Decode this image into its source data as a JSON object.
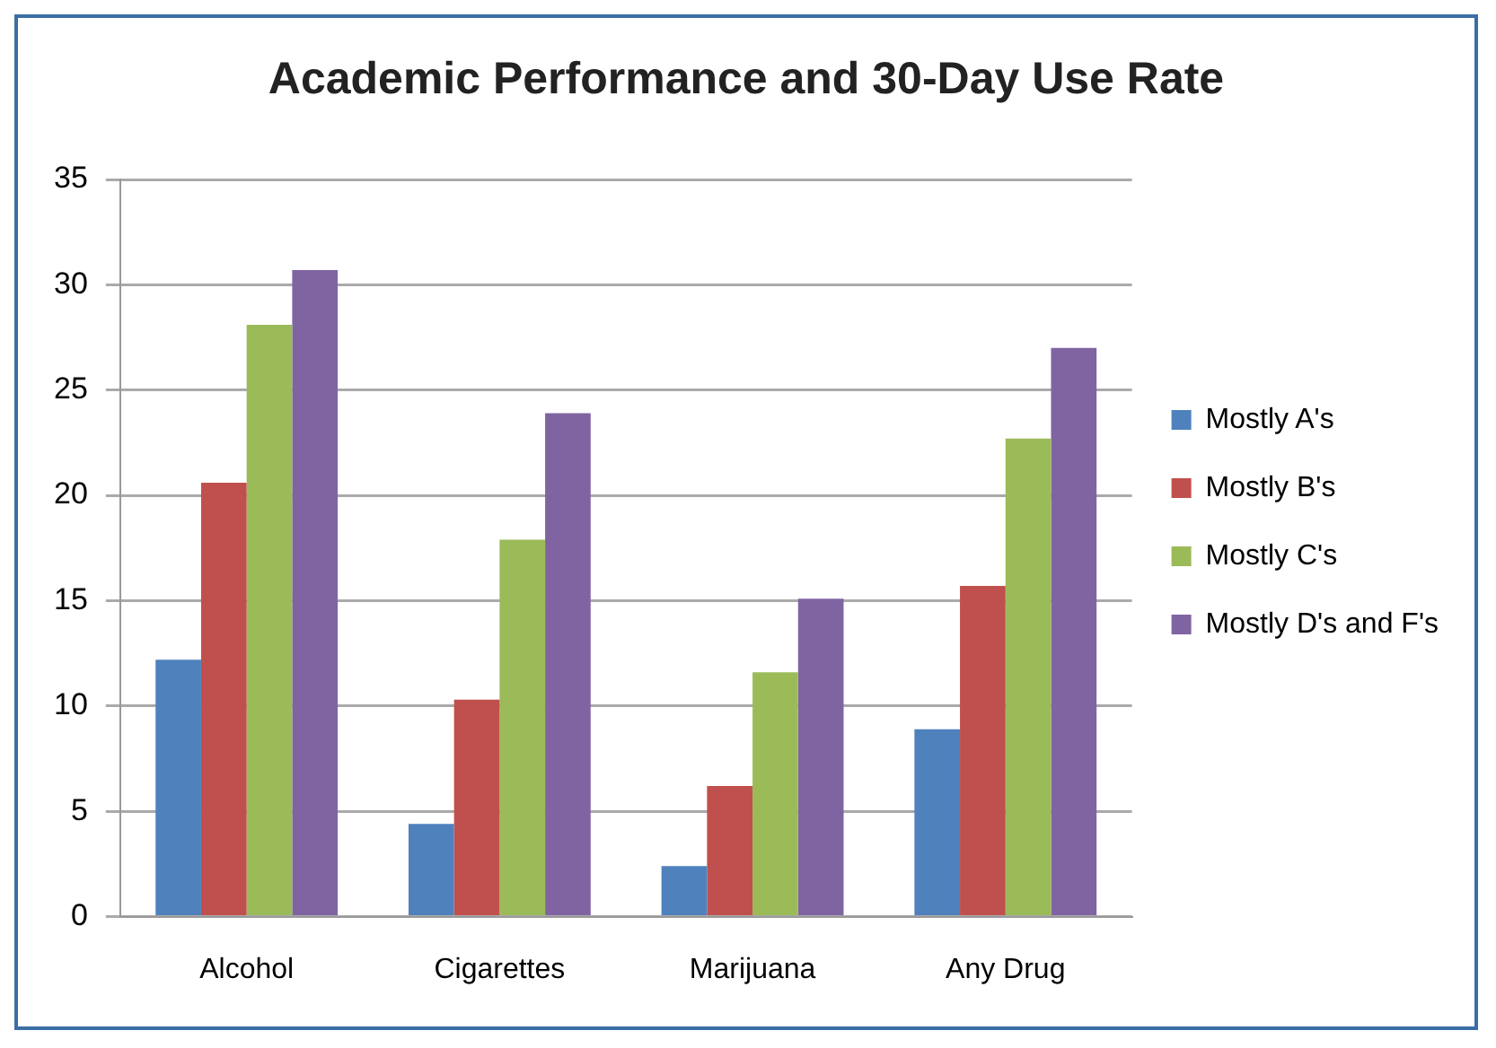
{
  "chart_data": {
    "type": "bar",
    "title": "Academic Performance and 30-Day Use Rate",
    "categories": [
      "Alcohol",
      "Cigarettes",
      "Marijuana",
      "Any Drug"
    ],
    "series": [
      {
        "name": "Mostly A's",
        "color": "#4f81bd",
        "values": [
          12.2,
          4.4,
          2.4,
          8.9
        ]
      },
      {
        "name": "Mostly B's",
        "color": "#c0504d",
        "values": [
          20.6,
          10.3,
          6.2,
          15.7
        ]
      },
      {
        "name": "Mostly C's",
        "color": "#9bbb59",
        "values": [
          28.1,
          17.9,
          11.6,
          22.7
        ]
      },
      {
        "name": "Mostly D's and F's",
        "color": "#8064a2",
        "values": [
          30.7,
          23.9,
          15.1,
          27.0
        ]
      }
    ],
    "ylim": [
      0,
      35
    ],
    "yticks": [
      0,
      5,
      10,
      15,
      20,
      25,
      30,
      35
    ],
    "grid": "y",
    "legend": "right"
  }
}
